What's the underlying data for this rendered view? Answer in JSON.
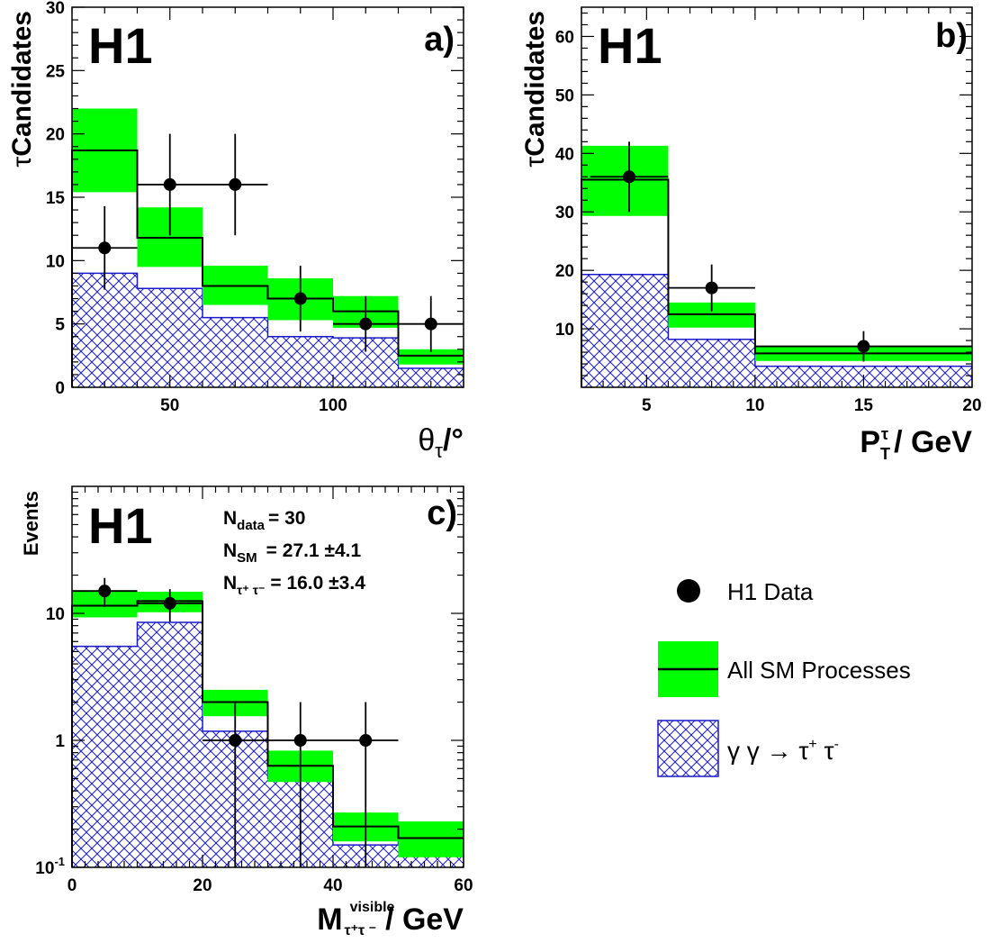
{
  "colors": {
    "band": "#00ff00",
    "hatch": "#1a1acc",
    "axis": "#000000",
    "data": "#000000"
  },
  "labels": {
    "experiment": "H1",
    "legend_data": "H1 Data",
    "legend_sm": "All SM Processes"
  },
  "chart_data": [
    {
      "panel": "a)",
      "type": "histogram",
      "ylabel": "Candidates",
      "xlabel_symbol": "θ",
      "xlabel_unit": "/°",
      "xlim": [
        20,
        140
      ],
      "ylim": [
        0,
        30
      ],
      "yscale": "linear",
      "xticks": [
        50,
        100
      ],
      "yticks": [
        0,
        5,
        10,
        15,
        20,
        25,
        30
      ],
      "bin_edges": [
        20,
        40,
        60,
        80,
        100,
        120,
        140
      ],
      "sm_total": [
        18.7,
        11.8,
        8.0,
        7.0,
        6.0,
        2.5
      ],
      "sm_err_low": [
        15.4,
        9.5,
        6.5,
        5.3,
        4.7,
        1.8
      ],
      "sm_err_high": [
        22.0,
        14.2,
        9.6,
        8.6,
        7.2,
        3.0
      ],
      "gamma_gamma": [
        9.0,
        7.8,
        5.5,
        4.0,
        3.9,
        1.5
      ],
      "data": [
        {
          "x": 30,
          "y": 11,
          "xerr": 10,
          "ylo": 7.7,
          "yhi": 14.3
        },
        {
          "x": 50,
          "y": 16,
          "xerr": 10,
          "ylo": 12.0,
          "yhi": 20.0
        },
        {
          "x": 70,
          "y": 16,
          "xerr": 10,
          "ylo": 12.0,
          "yhi": 20.0
        },
        {
          "x": 90,
          "y": 7,
          "xerr": 10,
          "ylo": 4.4,
          "yhi": 9.6
        },
        {
          "x": 110,
          "y": 5,
          "xerr": 10,
          "ylo": 2.8,
          "yhi": 7.2
        },
        {
          "x": 130,
          "y": 5,
          "xerr": 10,
          "ylo": 2.8,
          "yhi": 7.2
        }
      ]
    },
    {
      "panel": "b)",
      "type": "histogram",
      "ylabel": "Candidates",
      "xlabel": "/ GeV",
      "xlim": [
        2,
        20
      ],
      "ylim": [
        0,
        65
      ],
      "yscale": "linear",
      "xticks": [
        5,
        10,
        15,
        20
      ],
      "yticks": [
        10,
        20,
        30,
        40,
        50,
        60
      ],
      "bin_edges": [
        2,
        6,
        10,
        20
      ],
      "sm_total": [
        35.5,
        12.5,
        5.8
      ],
      "sm_err_low": [
        29.3,
        10.2,
        4.5
      ],
      "sm_err_high": [
        41.3,
        14.5,
        7.0
      ],
      "gamma_gamma": [
        19.3,
        8.2,
        3.6
      ],
      "data": [
        {
          "x": 4.2,
          "y": 36,
          "xerr": 1.8,
          "ylo": 30.0,
          "yhi": 42.0
        },
        {
          "x": 8.0,
          "y": 17,
          "xerr": 2.0,
          "ylo": 13.0,
          "yhi": 21.0
        },
        {
          "x": 15.0,
          "y": 7,
          "xerr": 5.0,
          "ylo": 4.4,
          "yhi": 9.6
        }
      ]
    },
    {
      "panel": "c)",
      "type": "histogram",
      "ylabel": "Events",
      "xlabel": "/ GeV",
      "xlim": [
        0,
        60
      ],
      "ylim": [
        0.1,
        100
      ],
      "yscale": "log",
      "xticks": [
        0,
        20,
        40,
        60
      ],
      "yticks": [
        0.1,
        1,
        10
      ],
      "bin_edges": [
        0,
        10,
        20,
        30,
        40,
        50,
        60
      ],
      "sm_total": [
        11.5,
        12.5,
        2.0,
        0.63,
        0.21,
        0.17
      ],
      "sm_err_low": [
        9.3,
        10.2,
        1.55,
        0.47,
        0.16,
        0.12
      ],
      "sm_err_high": [
        15.2,
        14.8,
        2.5,
        0.83,
        0.27,
        0.23
      ],
      "gamma_gamma": [
        5.5,
        8.5,
        1.18,
        0.5,
        0.15,
        0.17
      ],
      "data": [
        {
          "x": 5,
          "y": 15,
          "xerr": 5,
          "ylo": 11.2,
          "yhi": 19.0
        },
        {
          "x": 15,
          "y": 12,
          "xerr": 5,
          "ylo": 8.6,
          "yhi": 15.5
        },
        {
          "x": 25,
          "y": 1,
          "xerr": 5,
          "ylo": 0.1,
          "yhi": 2.0
        },
        {
          "x": 35,
          "y": 1,
          "xerr": 5,
          "ylo": 0.1,
          "yhi": 2.0
        },
        {
          "x": 45,
          "y": 1,
          "xerr": 5,
          "ylo": 0.1,
          "yhi": 2.0
        }
      ],
      "annotations": [
        {
          "main": "N",
          "sub": "data",
          "text": "= 30"
        },
        {
          "main": "N",
          "sub": "SM",
          "text": "= 27.1 ±4.1"
        },
        {
          "main": "N",
          "sub": "τ⁺ τ⁻",
          "text": "= 16.0 ±3.4"
        }
      ]
    }
  ]
}
